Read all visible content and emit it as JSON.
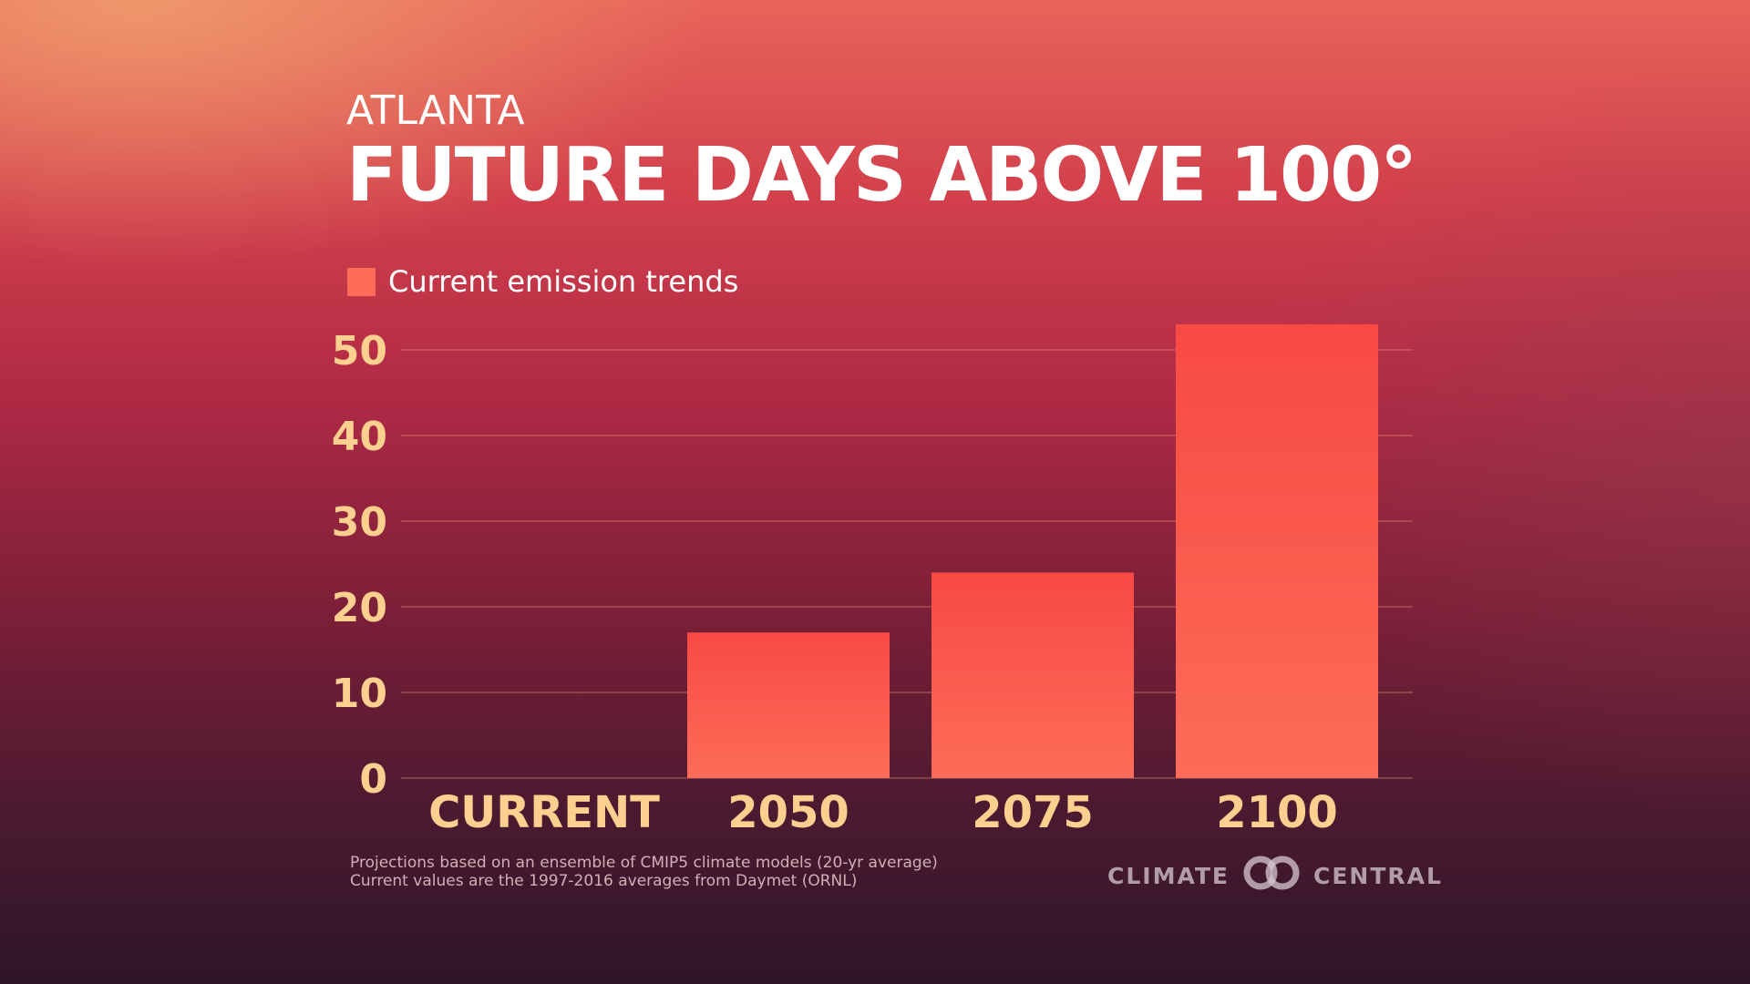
{
  "header": {
    "city": "ATLANTA",
    "title": "FUTURE DAYS ABOVE 100°"
  },
  "legend": {
    "label": "Current emission trends"
  },
  "colors": {
    "bar_top": "#f74a43",
    "bar_bottom": "#fd6c58",
    "tick_label": "#fdd08f",
    "grid": "#f0a080"
  },
  "chart_data": {
    "type": "bar",
    "title": "FUTURE DAYS ABOVE 100°",
    "xlabel": "",
    "ylabel": "",
    "categories": [
      "CURRENT",
      "2050",
      "2075",
      "2100"
    ],
    "series": [
      {
        "name": "Current emission trends",
        "values": [
          0,
          17,
          24,
          53
        ]
      }
    ],
    "ylim": [
      0,
      50
    ],
    "yticks": [
      0,
      10,
      20,
      30,
      40,
      50
    ],
    "grid": true,
    "legend": "top-left"
  },
  "footnote": {
    "line1": "Projections based on an ensemble of CMIP5 climate models (20-yr average)",
    "line2": "Current values are the 1997-2016 averages from Daymet (ORNL)"
  },
  "logo": {
    "left_text": "CLIMATE",
    "right_text": "CENTRAL",
    "icon": "interlocking-rings-icon"
  }
}
